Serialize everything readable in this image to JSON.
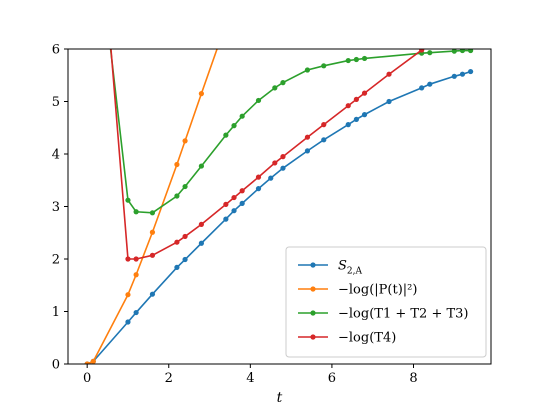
{
  "chart_data": {
    "type": "line",
    "xlabel": "t",
    "ylabel": "",
    "xlim": [
      -0.47,
      9.9
    ],
    "ylim": [
      0,
      6
    ],
    "xticks": [
      "0",
      "2",
      "4",
      "6",
      "8"
    ],
    "yticks": [
      "0",
      "1",
      "2",
      "3",
      "4",
      "5",
      "6"
    ],
    "grid": false,
    "legend_position": "lower-right",
    "series": [
      {
        "name": "S_{2,A}",
        "label_parts": {
          "base": "S",
          "sub": "2,A"
        },
        "color": "#1f77b4",
        "x": [
          0.0,
          0.15,
          1.0,
          1.2,
          1.6,
          2.2,
          2.4,
          2.8,
          3.4,
          3.6,
          3.8,
          4.2,
          4.5,
          4.8,
          5.4,
          5.8,
          6.4,
          6.6,
          6.8,
          7.4,
          8.2,
          8.4,
          9.0,
          9.2,
          9.4
        ],
        "y": [
          0.0,
          0.05,
          0.8,
          0.98,
          1.33,
          1.84,
          1.99,
          2.3,
          2.76,
          2.92,
          3.06,
          3.34,
          3.54,
          3.73,
          4.06,
          4.27,
          4.56,
          4.66,
          4.75,
          5.0,
          5.26,
          5.33,
          5.48,
          5.52,
          5.57
        ]
      },
      {
        "name": "−log(|P(t)|²)",
        "color": "#ff7f0e",
        "x": [
          0.0,
          0.15,
          1.0,
          1.2,
          1.6,
          2.2,
          2.4,
          2.8,
          3.5
        ],
        "y": [
          0.0,
          0.05,
          1.32,
          1.7,
          2.51,
          3.8,
          4.25,
          5.15,
          6.7
        ]
      },
      {
        "name": "−log(T1 + T2 + T3)",
        "color": "#2ca02c",
        "x": [
          0.5,
          1.0,
          1.2,
          1.6,
          2.2,
          2.4,
          2.8,
          3.4,
          3.6,
          3.8,
          4.2,
          4.6,
          4.8,
          5.4,
          5.8,
          6.4,
          6.6,
          6.8,
          8.2,
          8.4,
          9.0,
          9.2,
          9.4
        ],
        "y": [
          6.5,
          3.12,
          2.9,
          2.88,
          3.2,
          3.38,
          3.77,
          4.36,
          4.54,
          4.72,
          5.02,
          5.26,
          5.36,
          5.6,
          5.68,
          5.78,
          5.8,
          5.82,
          5.92,
          5.93,
          5.96,
          5.97,
          5.97
        ]
      },
      {
        "name": "−log(T4)",
        "color": "#d62728",
        "x": [
          0.5,
          1.0,
          1.2,
          1.6,
          2.2,
          2.4,
          2.8,
          3.4,
          3.6,
          3.8,
          4.2,
          4.6,
          4.8,
          5.4,
          5.8,
          6.4,
          6.6,
          6.8,
          7.4,
          8.2,
          8.5
        ],
        "y": [
          6.8,
          2.0,
          2.0,
          2.07,
          2.32,
          2.43,
          2.66,
          3.04,
          3.17,
          3.3,
          3.56,
          3.83,
          3.95,
          4.32,
          4.56,
          4.92,
          5.04,
          5.16,
          5.52,
          5.98,
          6.1
        ]
      }
    ]
  }
}
